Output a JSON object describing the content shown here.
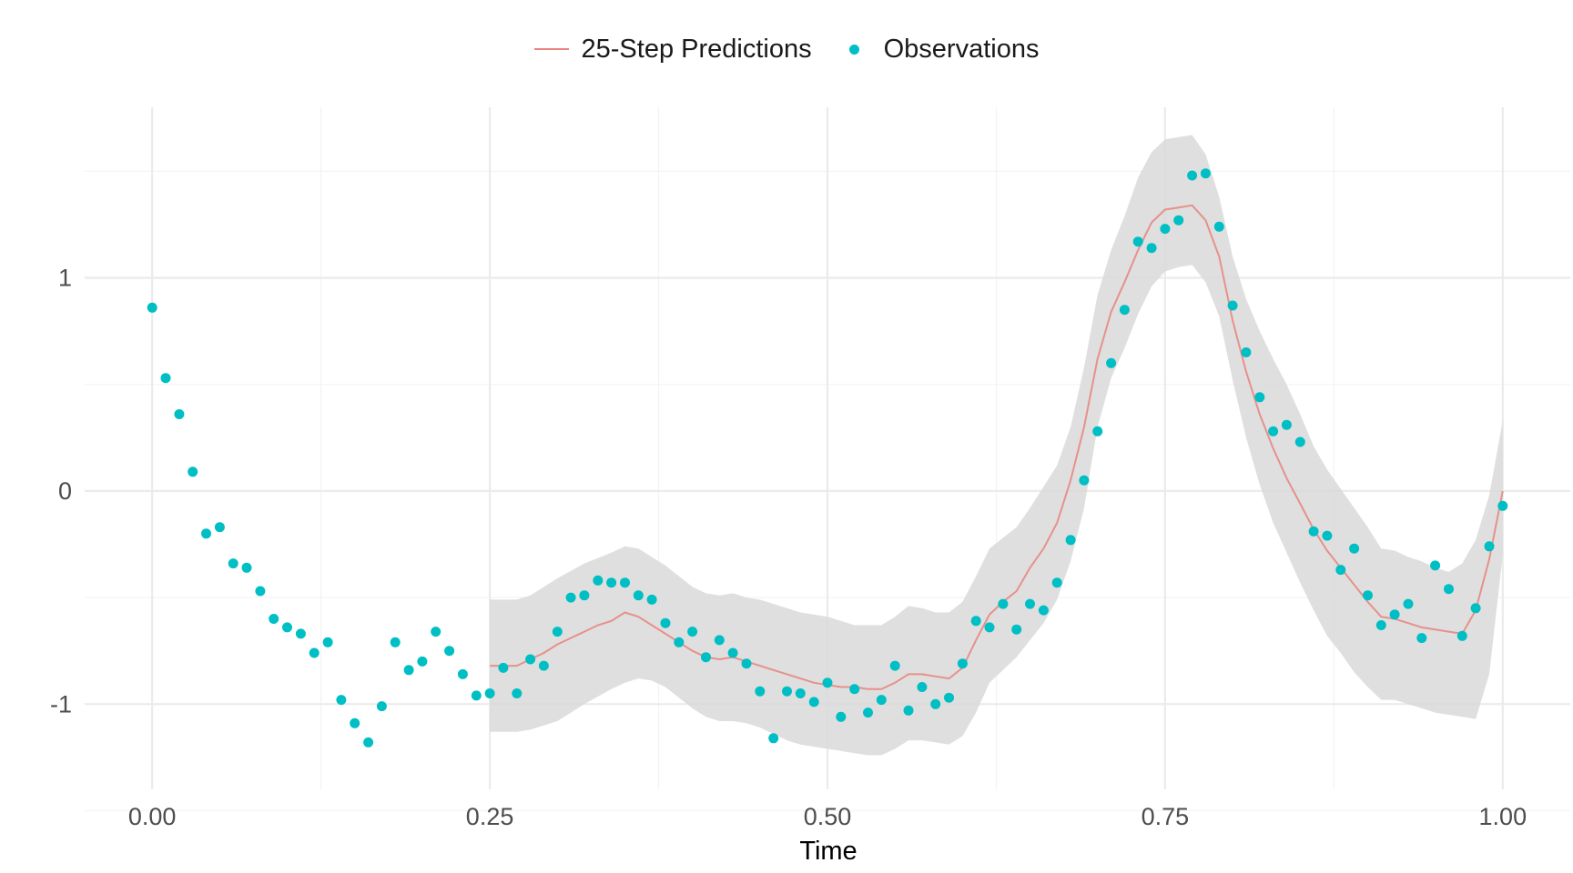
{
  "chart_data": {
    "type": "line",
    "title": "",
    "xlabel": "Time",
    "ylabel": "",
    "xlim": [
      -0.05,
      1.05
    ],
    "ylim": [
      -1.4,
      1.8
    ],
    "x_ticks": [
      0.0,
      0.25,
      0.5,
      0.75,
      1.0
    ],
    "x_tick_labels": [
      "0.00",
      "0.25",
      "0.50",
      "0.75",
      "1.00"
    ],
    "y_ticks": [
      -1,
      0,
      1
    ],
    "y_tick_labels": [
      "-1",
      "0",
      "1"
    ],
    "grid": true,
    "legend_position": "top",
    "legend": [
      {
        "label": "25-Step Predictions",
        "kind": "line",
        "color": "#e8847d"
      },
      {
        "label": "Observations",
        "kind": "point",
        "color": "#00bfc4"
      }
    ],
    "colors": {
      "prediction": "#e8847d",
      "observation": "#00bfc4",
      "band": "#d9d9d9",
      "grid": "#ebebeb"
    },
    "series": [
      {
        "name": "Observations",
        "kind": "point",
        "x": [
          0.0,
          0.01,
          0.02,
          0.03,
          0.04,
          0.05,
          0.06,
          0.07,
          0.08,
          0.09,
          0.1,
          0.11,
          0.12,
          0.13,
          0.14,
          0.15,
          0.16,
          0.17,
          0.18,
          0.19,
          0.2,
          0.21,
          0.22,
          0.23,
          0.24,
          0.25,
          0.26,
          0.27,
          0.28,
          0.29,
          0.3,
          0.31,
          0.32,
          0.33,
          0.34,
          0.35,
          0.36,
          0.37,
          0.38,
          0.39,
          0.4,
          0.41,
          0.42,
          0.43,
          0.44,
          0.45,
          0.46,
          0.47,
          0.48,
          0.49,
          0.5,
          0.51,
          0.52,
          0.53,
          0.54,
          0.55,
          0.56,
          0.57,
          0.58,
          0.59,
          0.6,
          0.61,
          0.62,
          0.63,
          0.64,
          0.65,
          0.66,
          0.67,
          0.68,
          0.69,
          0.7,
          0.71,
          0.72,
          0.73,
          0.74,
          0.75,
          0.76,
          0.77,
          0.78,
          0.79,
          0.8,
          0.81,
          0.82,
          0.83,
          0.84,
          0.85,
          0.86,
          0.87,
          0.88,
          0.89,
          0.9,
          0.91,
          0.92,
          0.93,
          0.94,
          0.95,
          0.96,
          0.97,
          0.98,
          0.99,
          1.0
        ],
        "y": [
          0.86,
          0.53,
          0.36,
          0.09,
          -0.2,
          -0.17,
          -0.34,
          -0.36,
          -0.47,
          -0.6,
          -0.64,
          -0.67,
          -0.76,
          -0.71,
          -0.98,
          -1.09,
          -1.18,
          -1.01,
          -0.71,
          -0.84,
          -0.8,
          -0.66,
          -0.75,
          -0.86,
          -0.96,
          -0.95,
          -0.83,
          -0.95,
          -0.79,
          -0.82,
          -0.66,
          -0.5,
          -0.49,
          -0.42,
          -0.43,
          -0.43,
          -0.49,
          -0.51,
          -0.62,
          -0.71,
          -0.66,
          -0.78,
          -0.7,
          -0.76,
          -0.81,
          -0.94,
          -1.16,
          -0.94,
          -0.95,
          -0.99,
          -0.9,
          -1.06,
          -0.93,
          -1.04,
          -0.98,
          -0.82,
          -1.03,
          -0.92,
          -1.0,
          -0.97,
          -0.81,
          -0.61,
          -0.64,
          -0.53,
          -0.65,
          -0.53,
          -0.56,
          -0.43,
          -0.23,
          0.05,
          0.28,
          0.6,
          0.85,
          1.17,
          1.14,
          1.23,
          1.27,
          1.48,
          1.49,
          1.24,
          0.87,
          0.65,
          0.44,
          0.28,
          0.31,
          0.23,
          -0.19,
          -0.21,
          -0.37,
          -0.27,
          -0.49,
          -0.63,
          -0.58,
          -0.53,
          -0.69,
          -0.35,
          -0.46,
          -0.68,
          -0.55,
          -0.26,
          -0.07
        ]
      },
      {
        "name": "25-Step Predictions",
        "kind": "line",
        "x": [
          0.25,
          0.26,
          0.27,
          0.28,
          0.29,
          0.3,
          0.31,
          0.32,
          0.33,
          0.34,
          0.35,
          0.36,
          0.37,
          0.38,
          0.39,
          0.4,
          0.41,
          0.42,
          0.43,
          0.44,
          0.45,
          0.46,
          0.47,
          0.48,
          0.49,
          0.5,
          0.51,
          0.52,
          0.53,
          0.54,
          0.55,
          0.56,
          0.57,
          0.58,
          0.59,
          0.6,
          0.61,
          0.62,
          0.63,
          0.64,
          0.65,
          0.66,
          0.67,
          0.68,
          0.69,
          0.7,
          0.71,
          0.72,
          0.73,
          0.74,
          0.75,
          0.76,
          0.77,
          0.78,
          0.79,
          0.8,
          0.81,
          0.82,
          0.83,
          0.84,
          0.85,
          0.86,
          0.87,
          0.88,
          0.89,
          0.9,
          0.91,
          0.92,
          0.93,
          0.94,
          0.95,
          0.96,
          0.97,
          0.98,
          0.99,
          1.0
        ],
        "y": [
          -0.82,
          -0.82,
          -0.82,
          -0.79,
          -0.76,
          -0.72,
          -0.69,
          -0.66,
          -0.63,
          -0.61,
          -0.57,
          -0.59,
          -0.63,
          -0.67,
          -0.71,
          -0.75,
          -0.78,
          -0.79,
          -0.78,
          -0.8,
          -0.82,
          -0.84,
          -0.86,
          -0.88,
          -0.9,
          -0.91,
          -0.92,
          -0.92,
          -0.93,
          -0.93,
          -0.9,
          -0.86,
          -0.86,
          -0.87,
          -0.88,
          -0.83,
          -0.7,
          -0.58,
          -0.52,
          -0.47,
          -0.36,
          -0.27,
          -0.15,
          0.05,
          0.3,
          0.62,
          0.84,
          0.98,
          1.13,
          1.26,
          1.32,
          1.33,
          1.34,
          1.27,
          1.1,
          0.8,
          0.56,
          0.36,
          0.2,
          0.06,
          -0.06,
          -0.18,
          -0.28,
          -0.36,
          -0.44,
          -0.52,
          -0.59,
          -0.6,
          -0.62,
          -0.64,
          -0.65,
          -0.66,
          -0.67,
          -0.56,
          -0.32,
          0.0
        ]
      }
    ],
    "confidence_band": {
      "name": "prediction-interval",
      "x": [
        0.25,
        0.27,
        0.28,
        0.3,
        0.32,
        0.34,
        0.35,
        0.36,
        0.37,
        0.38,
        0.39,
        0.4,
        0.41,
        0.42,
        0.43,
        0.44,
        0.45,
        0.46,
        0.47,
        0.48,
        0.49,
        0.5,
        0.51,
        0.52,
        0.53,
        0.54,
        0.55,
        0.56,
        0.57,
        0.58,
        0.59,
        0.6,
        0.61,
        0.62,
        0.63,
        0.64,
        0.65,
        0.66,
        0.67,
        0.68,
        0.69,
        0.7,
        0.71,
        0.72,
        0.73,
        0.74,
        0.75,
        0.76,
        0.77,
        0.78,
        0.79,
        0.8,
        0.81,
        0.82,
        0.83,
        0.84,
        0.85,
        0.86,
        0.87,
        0.88,
        0.89,
        0.9,
        0.91,
        0.92,
        0.93,
        0.94,
        0.95,
        0.96,
        0.97,
        0.98,
        0.99,
        1.0
      ],
      "upper": [
        -0.51,
        -0.51,
        -0.49,
        -0.41,
        -0.34,
        -0.29,
        -0.26,
        -0.27,
        -0.31,
        -0.35,
        -0.4,
        -0.45,
        -0.48,
        -0.49,
        -0.48,
        -0.5,
        -0.51,
        -0.53,
        -0.55,
        -0.57,
        -0.58,
        -0.59,
        -0.61,
        -0.63,
        -0.63,
        -0.63,
        -0.59,
        -0.54,
        -0.55,
        -0.57,
        -0.57,
        -0.52,
        -0.4,
        -0.27,
        -0.22,
        -0.17,
        -0.08,
        0.02,
        0.12,
        0.3,
        0.58,
        0.92,
        1.13,
        1.29,
        1.47,
        1.59,
        1.65,
        1.66,
        1.67,
        1.58,
        1.38,
        1.1,
        0.9,
        0.75,
        0.62,
        0.5,
        0.36,
        0.21,
        0.1,
        0.01,
        -0.08,
        -0.17,
        -0.27,
        -0.28,
        -0.31,
        -0.33,
        -0.36,
        -0.38,
        -0.34,
        -0.23,
        -0.02,
        0.33
      ],
      "lower": [
        -1.13,
        -1.13,
        -1.12,
        -1.08,
        -1.0,
        -0.93,
        -0.9,
        -0.88,
        -0.89,
        -0.92,
        -0.97,
        -1.02,
        -1.06,
        -1.08,
        -1.08,
        -1.09,
        -1.11,
        -1.14,
        -1.17,
        -1.19,
        -1.2,
        -1.21,
        -1.22,
        -1.23,
        -1.24,
        -1.24,
        -1.21,
        -1.17,
        -1.17,
        -1.18,
        -1.19,
        -1.15,
        -1.04,
        -0.9,
        -0.84,
        -0.78,
        -0.7,
        -0.62,
        -0.51,
        -0.33,
        -0.08,
        0.3,
        0.53,
        0.67,
        0.83,
        0.96,
        1.03,
        1.05,
        1.06,
        0.98,
        0.82,
        0.52,
        0.25,
        0.03,
        -0.15,
        -0.29,
        -0.43,
        -0.56,
        -0.68,
        -0.76,
        -0.85,
        -0.92,
        -0.98,
        -0.98,
        -1.0,
        -1.02,
        -1.04,
        -1.05,
        -1.06,
        -1.07,
        -0.86,
        -0.3
      ]
    }
  }
}
